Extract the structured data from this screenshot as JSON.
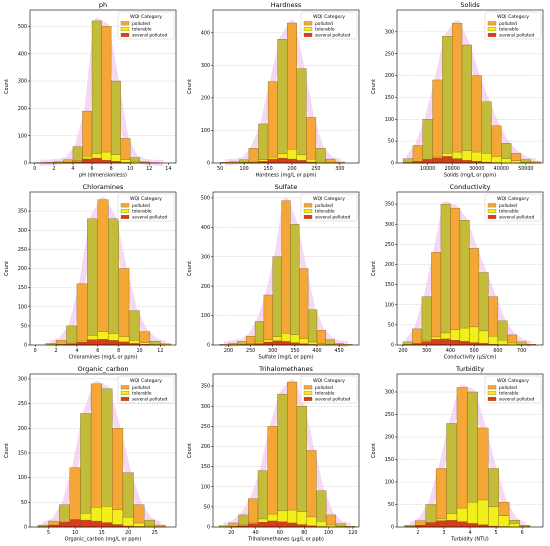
{
  "legend": {
    "title": "WQI Category",
    "entries": [
      "polluted",
      "tolerable",
      "several polluted"
    ]
  },
  "colors": {
    "polluted": "#f4a736",
    "polluted_olive": "#c3bc3b",
    "tolerable": "#f2ef1c",
    "several_polluted": "#d93b1e",
    "kde": "#f2c7f0",
    "edge": "#7a5a10"
  },
  "chart_data": [
    {
      "type": "bar",
      "title": "ph",
      "xlabel": "pH (dimensionless)",
      "ylabel": "Count",
      "xlim": [
        -0.5,
        14.8
      ],
      "xticks": [
        0,
        2,
        4,
        6,
        8,
        10,
        12,
        14
      ],
      "ylim": [
        0,
        560
      ],
      "yticks": [
        0,
        100,
        200,
        300,
        400,
        500
      ],
      "bin_edges": [
        0,
        1,
        2,
        3,
        4,
        5,
        6,
        7,
        8,
        9,
        10,
        11,
        12,
        13,
        14
      ],
      "series": [
        {
          "name": "polluted",
          "values": [
            1,
            2,
            5,
            12,
            60,
            190,
            520,
            500,
            300,
            90,
            20,
            4,
            1,
            0
          ]
        },
        {
          "name": "tolerable",
          "values": [
            0,
            0,
            1,
            3,
            8,
            25,
            35,
            40,
            30,
            12,
            4,
            1,
            0,
            0
          ]
        },
        {
          "name": "several polluted",
          "values": [
            0,
            0,
            0,
            1,
            5,
            15,
            18,
            10,
            6,
            2,
            0,
            0,
            0,
            0
          ]
        }
      ]
    },
    {
      "type": "bar",
      "title": "Hardness",
      "xlabel": "Hardness (mg/L or ppm)",
      "ylabel": "Count",
      "xlim": [
        35,
        340
      ],
      "xticks": [
        50,
        100,
        150,
        200,
        250,
        300
      ],
      "ylim": [
        0,
        470
      ],
      "yticks": [
        0,
        100,
        200,
        300,
        400
      ],
      "bin_edges": [
        50,
        70,
        90,
        110,
        130,
        150,
        170,
        190,
        210,
        230,
        250,
        270,
        290,
        310
      ],
      "series": [
        {
          "name": "polluted",
          "values": [
            2,
            4,
            10,
            45,
            120,
            250,
            380,
            430,
            290,
            140,
            45,
            12,
            3
          ]
        },
        {
          "name": "tolerable",
          "values": [
            0,
            1,
            2,
            5,
            10,
            18,
            28,
            42,
            25,
            12,
            5,
            1,
            0
          ]
        },
        {
          "name": "several polluted",
          "values": [
            0,
            0,
            1,
            2,
            5,
            12,
            15,
            12,
            8,
            3,
            1,
            0,
            0
          ]
        }
      ]
    },
    {
      "type": "bar",
      "title": "Solids",
      "xlabel": "Solids (mg/L or ppm)",
      "ylabel": "Count",
      "xlim": [
        -2500,
        57000
      ],
      "xticks": [
        10000,
        20000,
        30000,
        40000,
        50000
      ],
      "ylim": [
        0,
        350
      ],
      "yticks": [
        0,
        50,
        100,
        150,
        200,
        250,
        300
      ],
      "bin_edges": [
        0,
        4000,
        8000,
        12000,
        16000,
        20000,
        24000,
        28000,
        32000,
        36000,
        40000,
        44000,
        48000,
        52000,
        56000
      ],
      "series": [
        {
          "name": "polluted",
          "values": [
            10,
            40,
            100,
            190,
            290,
            320,
            270,
            200,
            140,
            85,
            45,
            22,
            8,
            3
          ]
        },
        {
          "name": "tolerable",
          "values": [
            1,
            4,
            8,
            15,
            22,
            25,
            28,
            25,
            22,
            15,
            10,
            5,
            2,
            0
          ]
        },
        {
          "name": "several polluted",
          "values": [
            1,
            3,
            8,
            12,
            15,
            10,
            6,
            4,
            2,
            1,
            0,
            0,
            0,
            0
          ]
        }
      ]
    },
    {
      "type": "bar",
      "title": "Chloramines",
      "xlabel": "Chloramines (mg/L or ppm)",
      "ylabel": "Count",
      "xlim": [
        -0.5,
        13.5
      ],
      "xticks": [
        0,
        2,
        4,
        6,
        8,
        10,
        12
      ],
      "ylim": [
        0,
        400
      ],
      "yticks": [
        0,
        50,
        100,
        150,
        200,
        250,
        300,
        350
      ],
      "bin_edges": [
        1,
        2,
        3,
        4,
        5,
        6,
        7,
        8,
        9,
        10,
        11,
        12,
        13
      ],
      "series": [
        {
          "name": "polluted",
          "values": [
            4,
            12,
            50,
            160,
            330,
            380,
            330,
            200,
            90,
            35,
            10,
            3
          ]
        },
        {
          "name": "tolerable",
          "values": [
            0,
            2,
            5,
            12,
            25,
            35,
            30,
            22,
            12,
            6,
            2,
            0
          ]
        },
        {
          "name": "several polluted",
          "values": [
            0,
            1,
            3,
            8,
            14,
            15,
            12,
            8,
            4,
            2,
            0,
            0
          ]
        }
      ]
    },
    {
      "type": "bar",
      "title": "Sulfate",
      "xlabel": "Sulfate (mg/L or ppm)",
      "ylabel": "Count",
      "xlim": [
        165,
        495
      ],
      "xticks": [
        200,
        250,
        300,
        350,
        400,
        450
      ],
      "ylim": [
        0,
        520
      ],
      "yticks": [
        0,
        100,
        200,
        300,
        400,
        500
      ],
      "bin_edges": [
        180,
        200,
        220,
        240,
        260,
        280,
        300,
        320,
        340,
        360,
        380,
        400,
        420,
        440,
        460,
        480
      ],
      "series": [
        {
          "name": "polluted",
          "values": [
            2,
            5,
            12,
            30,
            80,
            170,
            300,
            490,
            410,
            260,
            120,
            50,
            18,
            5,
            2
          ]
        },
        {
          "name": "tolerable",
          "values": [
            0,
            1,
            2,
            4,
            10,
            18,
            28,
            40,
            35,
            22,
            10,
            4,
            2,
            1,
            0
          ]
        },
        {
          "name": "several polluted",
          "values": [
            0,
            0,
            1,
            2,
            5,
            10,
            14,
            12,
            8,
            4,
            2,
            1,
            0,
            0,
            0
          ]
        }
      ]
    },
    {
      "type": "bar",
      "title": "Conductivity",
      "xlabel": "Conductivity (μS/cm)",
      "ylabel": "Count",
      "xlim": [
        175,
        790
      ],
      "xticks": [
        200,
        300,
        400,
        500,
        600,
        700
      ],
      "ylim": [
        0,
        380
      ],
      "yticks": [
        0,
        50,
        100,
        150,
        200,
        250,
        300,
        350
      ],
      "bin_edges": [
        200,
        240,
        280,
        320,
        360,
        400,
        440,
        480,
        520,
        560,
        600,
        640,
        680,
        720,
        760
      ],
      "series": [
        {
          "name": "polluted",
          "values": [
            8,
            40,
            120,
            230,
            350,
            340,
            310,
            240,
            180,
            120,
            60,
            25,
            8,
            2
          ]
        },
        {
          "name": "tolerable",
          "values": [
            1,
            4,
            10,
            20,
            30,
            38,
            42,
            45,
            35,
            22,
            12,
            5,
            2,
            0
          ]
        },
        {
          "name": "several polluted",
          "values": [
            1,
            3,
            8,
            14,
            15,
            12,
            9,
            6,
            4,
            2,
            1,
            0,
            0,
            0
          ]
        }
      ]
    },
    {
      "type": "bar",
      "title": "Organic_carbon",
      "xlabel": "Organic_carbon (mg/L or ppm)",
      "ylabel": "Count",
      "xlim": [
        1.5,
        29
      ],
      "xticks": [
        5,
        10,
        15,
        20,
        25
      ],
      "ylim": [
        0,
        310
      ],
      "yticks": [
        0,
        50,
        100,
        150,
        200,
        250,
        300
      ],
      "bin_edges": [
        3,
        5,
        7,
        9,
        11,
        13,
        15,
        17,
        19,
        21,
        23,
        25,
        27
      ],
      "series": [
        {
          "name": "polluted",
          "values": [
            4,
            12,
            45,
            120,
            230,
            290,
            280,
            200,
            110,
            45,
            14,
            4
          ]
        },
        {
          "name": "tolerable",
          "values": [
            0,
            2,
            6,
            15,
            28,
            40,
            42,
            35,
            20,
            8,
            2,
            0
          ]
        },
        {
          "name": "several polluted",
          "values": [
            1,
            4,
            10,
            15,
            14,
            12,
            9,
            5,
            2,
            1,
            0,
            0
          ]
        }
      ]
    },
    {
      "type": "bar",
      "title": "Trihalomethanes",
      "xlabel": "Trihalomethanes (μg/L or ppb)",
      "ylabel": "Count",
      "xlim": [
        5,
        125
      ],
      "xticks": [
        20,
        40,
        60,
        80,
        100,
        120
      ],
      "ylim": [
        0,
        380
      ],
      "yticks": [
        0,
        50,
        100,
        150,
        200,
        250,
        300,
        350
      ],
      "bin_edges": [
        10,
        18,
        26,
        34,
        42,
        50,
        58,
        66,
        74,
        82,
        90,
        98,
        106,
        114,
        122
      ],
      "series": [
        {
          "name": "polluted",
          "values": [
            3,
            10,
            30,
            70,
            140,
            250,
            330,
            360,
            300,
            190,
            90,
            30,
            8,
            2
          ]
        },
        {
          "name": "tolerable",
          "values": [
            0,
            2,
            5,
            10,
            20,
            32,
            40,
            42,
            38,
            25,
            14,
            5,
            1,
            0
          ]
        },
        {
          "name": "several polluted",
          "values": [
            0,
            1,
            3,
            8,
            12,
            15,
            13,
            10,
            6,
            3,
            1,
            0,
            0,
            0
          ]
        }
      ]
    },
    {
      "type": "bar",
      "title": "Turbidity",
      "xlabel": "Turbidity (NTU)",
      "ylabel": "Count",
      "xlim": [
        1.2,
        6.8
      ],
      "xticks": [
        2,
        3,
        4,
        5,
        6
      ],
      "ylim": [
        0,
        340
      ],
      "yticks": [
        0,
        50,
        100,
        150,
        200,
        250,
        300
      ],
      "bin_edges": [
        1.5,
        1.9,
        2.3,
        2.7,
        3.1,
        3.5,
        3.9,
        4.3,
        4.7,
        5.1,
        5.5,
        5.9,
        6.3
      ],
      "series": [
        {
          "name": "polluted",
          "values": [
            4,
            14,
            50,
            130,
            230,
            310,
            300,
            220,
            130,
            55,
            15,
            4
          ]
        },
        {
          "name": "tolerable",
          "values": [
            0,
            2,
            8,
            18,
            30,
            42,
            55,
            60,
            45,
            25,
            8,
            2
          ]
        },
        {
          "name": "several polluted",
          "values": [
            1,
            4,
            10,
            14,
            15,
            12,
            8,
            5,
            2,
            1,
            0,
            0
          ]
        }
      ]
    }
  ]
}
